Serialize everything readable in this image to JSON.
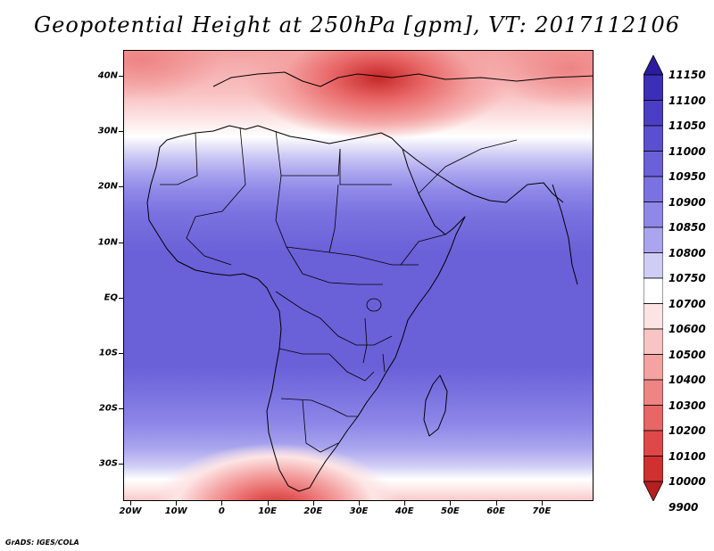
{
  "title": "Geopotential Height at 250hPa [gpm], VT: 2017112106",
  "latitude_labels": [
    "40N",
    "30N",
    "20N",
    "10N",
    "EQ",
    "10S",
    "20S",
    "30S"
  ],
  "longitude_labels": [
    "20W",
    "10W",
    "0",
    "10E",
    "20E",
    "30E",
    "40E",
    "50E",
    "60E",
    "70E"
  ],
  "colorbar": {
    "labels": [
      "11150",
      "11100",
      "11050",
      "11000",
      "10950",
      "10900",
      "10850",
      "10800",
      "10750",
      "10700",
      "10600",
      "10500",
      "10400",
      "10300",
      "10200",
      "10100",
      "10000",
      "9900"
    ],
    "colors": [
      "#2d1a9e",
      "#3b2fb8",
      "#4a3fc4",
      "#5a50cf",
      "#6a60d8",
      "#7a72e0",
      "#8f88e8",
      "#aaa5ee",
      "#d0cdf5",
      "#ffffff",
      "#fde4e4",
      "#f9c4c4",
      "#f4a2a2",
      "#ee8484",
      "#e86666",
      "#de4848",
      "#cf3030",
      "#b51f1f"
    ]
  },
  "map_colors": {
    "deep_red": "#c62828",
    "red": "#e86666",
    "salmon": "#f4a2a2",
    "pink": "#f9c4c4",
    "light_pink": "#fde4e4",
    "white": "#ffffff",
    "lavender": "#d0cdf5",
    "light_purple": "#aaa5ee",
    "medium_purple": "#8f88e8",
    "purple": "#7a72e0",
    "deep_purple": "#6a60d8"
  },
  "footer": "GrADS: IGES/COLA"
}
